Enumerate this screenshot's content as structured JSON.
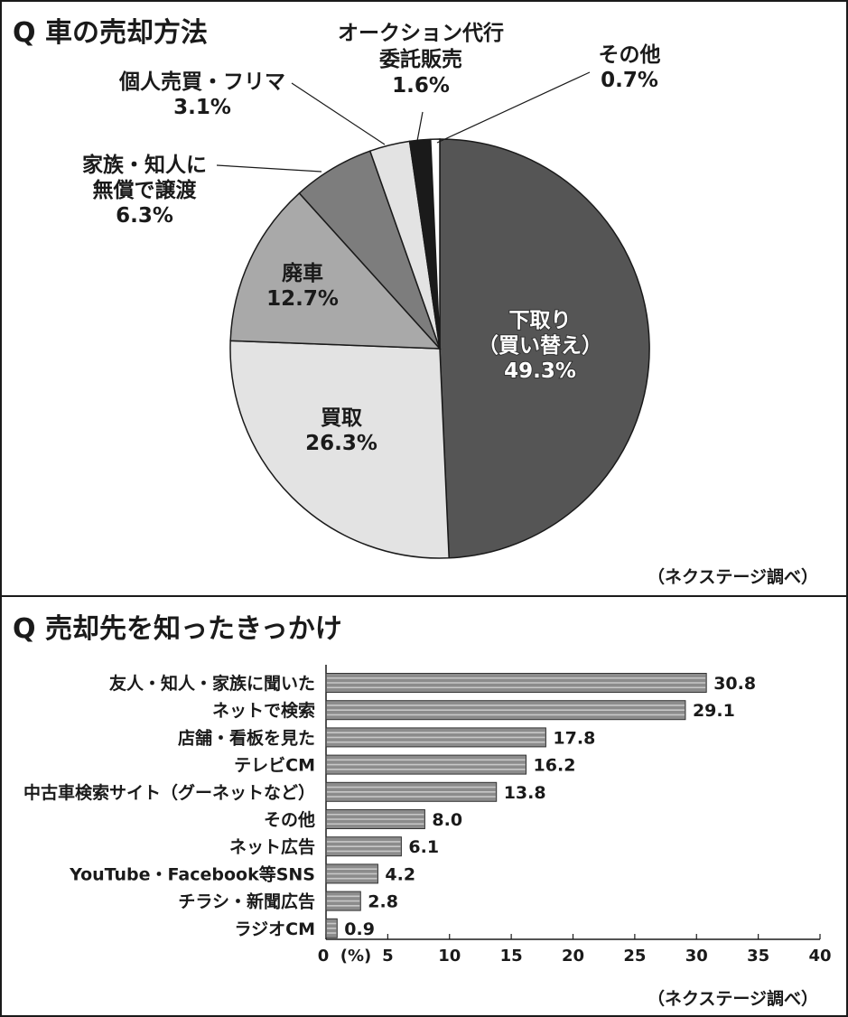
{
  "chart_data": [
    {
      "type": "pie",
      "title": "Q 車の売却方法",
      "source": "（ネクステージ調べ）",
      "slices": [
        {
          "label_lines": [
            "下取り",
            "（買い替え）"
          ],
          "value": 49.3,
          "value_text": "49.3%",
          "color": "#555555"
        },
        {
          "label_lines": [
            "買取"
          ],
          "value": 26.3,
          "value_text": "26.3%",
          "color": "#e3e3e3"
        },
        {
          "label_lines": [
            "廃車"
          ],
          "value": 12.7,
          "value_text": "12.7%",
          "color": "#a9a9a9"
        },
        {
          "label_lines": [
            "家族・知人に",
            "無償で譲渡"
          ],
          "value": 6.3,
          "value_text": "6.3%",
          "color": "#7d7d7d"
        },
        {
          "label_lines": [
            "個人売買・フリマ"
          ],
          "value": 3.1,
          "value_text": "3.1%",
          "color": "#e3e3e3"
        },
        {
          "label_lines": [
            "オークション代行",
            "委託販売"
          ],
          "value": 1.6,
          "value_text": "1.6%",
          "color": "#1a1a1a"
        },
        {
          "label_lines": [
            "その他"
          ],
          "value": 0.7,
          "value_text": "0.7%",
          "color": "#ffffff"
        }
      ]
    },
    {
      "type": "bar",
      "orientation": "horizontal",
      "title": "Q 売却先を知ったきっかけ",
      "source": "（ネクステージ調べ）",
      "unit_label": "(%)",
      "categories": [
        "友人・知人・家族に聞いた",
        "ネットで検索",
        "店舗・看板を見た",
        "テレビCM",
        "中古車検索サイト（グーネットなど）",
        "その他",
        "ネット広告",
        "YouTube・Facebook等SNS",
        "チラシ・新聞広告",
        "ラジオCM"
      ],
      "values": [
        30.8,
        29.1,
        17.8,
        16.2,
        13.8,
        8.0,
        6.1,
        4.2,
        2.8,
        0.9
      ],
      "value_labels": [
        "30.8",
        "29.1",
        "17.8",
        "16.2",
        "13.8",
        "8.0",
        "6.1",
        "4.2",
        "2.8",
        "0.9"
      ],
      "xlim": [
        0,
        40
      ],
      "xticks": [
        0,
        5,
        10,
        15,
        20,
        25,
        30,
        35,
        40
      ],
      "xtick_labels": [
        "0",
        "5",
        "10",
        "15",
        "20",
        "25",
        "30",
        "35",
        "40"
      ],
      "bar_color": "#8c8c8c"
    }
  ]
}
